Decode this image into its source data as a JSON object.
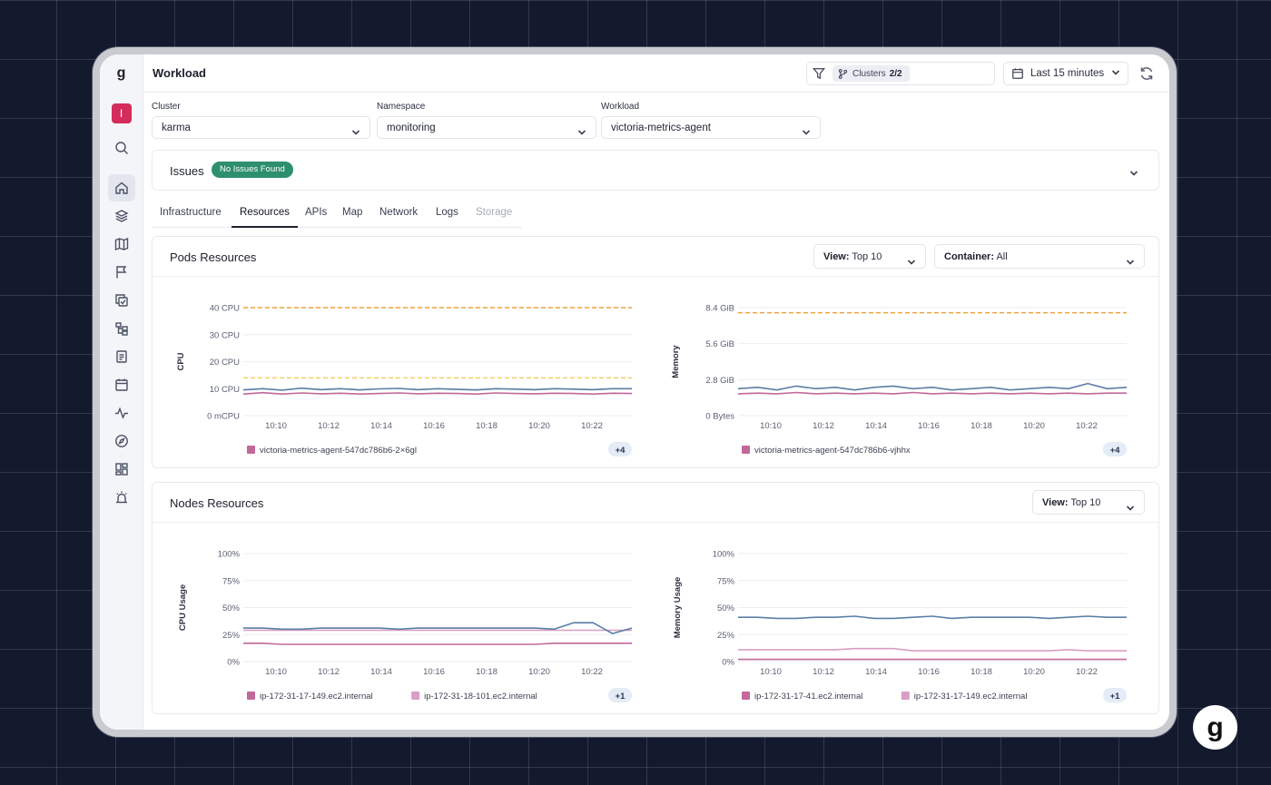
{
  "header": {
    "title": "Workload",
    "clusters_label": "Clusters",
    "clusters_count": "2/2",
    "time_range": "Last 15 minutes"
  },
  "sidebar": {
    "logo": "g",
    "user_initial": "I",
    "icons": [
      "search-icon",
      "home-icon",
      "layers-icon",
      "map-icon",
      "flag-icon",
      "copy-check-icon",
      "hierarchy-icon",
      "document-icon",
      "calendar-icon",
      "pulse-icon",
      "compass-icon",
      "dashboard-icon",
      "alarm-icon"
    ]
  },
  "filters": {
    "cluster": {
      "label": "Cluster",
      "value": "karma"
    },
    "namespace": {
      "label": "Namespace",
      "value": "monitoring"
    },
    "workload": {
      "label": "Workload",
      "value": "victoria-metrics-agent"
    }
  },
  "issues": {
    "title": "Issues",
    "badge": "No Issues Found"
  },
  "tabs": [
    {
      "label": "Infrastructure",
      "state": "normal"
    },
    {
      "label": "Resources",
      "state": "active"
    },
    {
      "label": "APIs",
      "state": "normal"
    },
    {
      "label": "Map",
      "state": "normal"
    },
    {
      "label": "Network",
      "state": "normal"
    },
    {
      "label": "Logs",
      "state": "normal"
    },
    {
      "label": "Storage",
      "state": "disabled"
    }
  ],
  "pods": {
    "title": "Pods Resources",
    "view_key": "View:",
    "view_value": "Top 10",
    "container_key": "Container:",
    "container_value": "All"
  },
  "nodes": {
    "title": "Nodes Resources",
    "view_key": "View:",
    "view_value": "Top 10"
  },
  "colors": {
    "series_blue": "#5b7ea6",
    "series_pink": "#c2689a",
    "series_light_pink": "#d99ec4",
    "limit_orange": "#f0a23a",
    "request_yellow": "#f7cf62",
    "badge_green": "#2e8f6d"
  },
  "chart_data": [
    {
      "type": "line",
      "ylabel": "CPU",
      "y_ticks": [
        "0 mCPU",
        "10 CPU",
        "20 CPU",
        "30 CPU",
        "40 CPU"
      ],
      "ylim": [
        0,
        40
      ],
      "x_ticks": [
        "10:10",
        "10:12",
        "10:14",
        "10:16",
        "10:18",
        "10:20",
        "10:22"
      ],
      "reference_lines": [
        {
          "style": "dashed",
          "color": "limit_orange",
          "value": 40
        },
        {
          "style": "dashed",
          "color": "request_yellow",
          "value": 14
        }
      ],
      "series": [
        {
          "color": "series_pink",
          "values": [
            8,
            8.5,
            8,
            8.4,
            8.1,
            8.3,
            8,
            8.2,
            8.4,
            8.1,
            8.3,
            8.2,
            8,
            8.4,
            8.2,
            8.1,
            8.3,
            8.2,
            8,
            8.3,
            8.2
          ]
        },
        {
          "color": "series_blue",
          "values": [
            9.5,
            10,
            9.4,
            10.2,
            9.6,
            10,
            9.5,
            9.9,
            10.1,
            9.6,
            10,
            9.7,
            9.5,
            10,
            9.8,
            9.6,
            10,
            9.8,
            9.6,
            10,
            10
          ]
        }
      ],
      "legend": [
        {
          "name": "victoria-metrics-agent-547dc786b6-2×6gl",
          "color": "series_pink"
        }
      ],
      "more": "+4"
    },
    {
      "type": "line",
      "ylabel": "Memory",
      "y_ticks": [
        "0 Bytes",
        "2.8 GiB",
        "5.6 GiB",
        "8.4 GiB"
      ],
      "ylim": [
        0,
        8.4
      ],
      "x_ticks": [
        "10:10",
        "10:12",
        "10:14",
        "10:16",
        "10:18",
        "10:20",
        "10:22"
      ],
      "reference_lines": [
        {
          "style": "dashed",
          "color": "limit_orange",
          "value": 8
        }
      ],
      "series": [
        {
          "color": "series_pink",
          "values": [
            1.7,
            1.75,
            1.7,
            1.8,
            1.7,
            1.75,
            1.7,
            1.75,
            1.7,
            1.8,
            1.7,
            1.75,
            1.7,
            1.75,
            1.7,
            1.75,
            1.7,
            1.75,
            1.7,
            1.75,
            1.75
          ]
        },
        {
          "color": "series_blue",
          "values": [
            2.1,
            2.2,
            2.0,
            2.3,
            2.1,
            2.2,
            2.0,
            2.2,
            2.3,
            2.1,
            2.2,
            2.0,
            2.1,
            2.2,
            2.0,
            2.1,
            2.2,
            2.1,
            2.5,
            2.1,
            2.2
          ]
        }
      ],
      "legend": [
        {
          "name": "victoria-metrics-agent-547dc786b6-vjhhx",
          "color": "series_pink"
        }
      ],
      "more": "+4"
    },
    {
      "type": "line",
      "ylabel": "CPU Usage",
      "y_ticks": [
        "0%",
        "25%",
        "50%",
        "75%",
        "100%"
      ],
      "ylim": [
        0,
        100
      ],
      "x_ticks": [
        "10:10",
        "10:12",
        "10:14",
        "10:16",
        "10:18",
        "10:20",
        "10:22"
      ],
      "series": [
        {
          "color": "series_pink",
          "values": [
            17,
            17,
            16,
            16,
            16,
            16,
            16,
            16,
            16,
            16,
            16,
            16,
            16,
            16,
            16,
            16,
            17,
            17,
            17,
            17,
            17
          ]
        },
        {
          "color": "series_light_pink",
          "values": [
            29,
            29,
            29,
            29,
            29,
            29,
            29,
            29,
            29,
            29,
            29,
            29,
            29,
            29,
            29,
            29,
            29,
            29,
            29,
            29,
            29
          ]
        },
        {
          "color": "series_blue",
          "values": [
            31,
            31,
            30,
            30,
            31,
            31,
            31,
            31,
            30,
            31,
            31,
            31,
            31,
            31,
            31,
            31,
            30,
            36,
            36,
            26,
            31
          ]
        }
      ],
      "legend": [
        {
          "name": "ip-172-31-17-149.ec2.internal",
          "color": "series_pink"
        },
        {
          "name": "ip-172-31-18-101.ec2.internal",
          "color": "series_light_pink"
        }
      ],
      "more": "+1"
    },
    {
      "type": "line",
      "ylabel": "Memory Usage",
      "y_ticks": [
        "0%",
        "25%",
        "50%",
        "75%",
        "100%"
      ],
      "ylim": [
        0,
        100
      ],
      "x_ticks": [
        "10:10",
        "10:12",
        "10:14",
        "10:16",
        "10:18",
        "10:20",
        "10:22"
      ],
      "series": [
        {
          "color": "series_pink",
          "values": [
            2,
            2,
            2,
            2,
            2,
            2,
            2,
            2,
            2,
            2,
            2,
            2,
            2,
            2,
            2,
            2,
            2,
            2,
            2,
            2,
            2
          ]
        },
        {
          "color": "series_light_pink",
          "values": [
            11,
            11,
            11,
            11,
            11,
            11,
            12,
            12,
            12,
            10,
            10,
            10,
            10,
            10,
            10,
            10,
            10,
            11,
            10,
            10,
            10
          ]
        },
        {
          "color": "series_blue",
          "values": [
            41,
            41,
            40,
            40,
            41,
            41,
            42,
            40,
            40,
            41,
            42,
            40,
            41,
            41,
            41,
            41,
            40,
            41,
            42,
            41,
            41
          ]
        }
      ],
      "legend": [
        {
          "name": "ip-172-31-17-41.ec2.internal",
          "color": "series_pink"
        },
        {
          "name": "ip-172-31-17-149.ec2.internal",
          "color": "series_light_pink"
        }
      ],
      "more": "+1"
    }
  ]
}
